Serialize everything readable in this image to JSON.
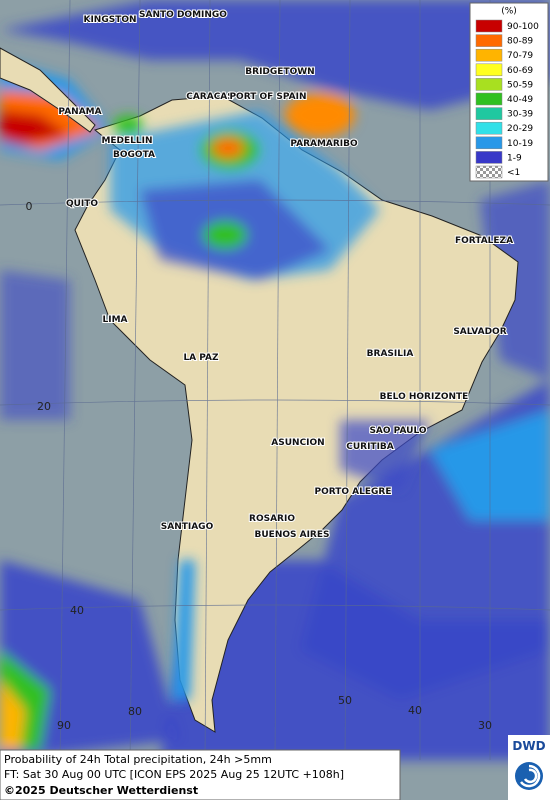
{
  "legend": {
    "title": "(%)",
    "items": [
      {
        "label": "90-100",
        "color": "#c80000"
      },
      {
        "label": "80-89",
        "color": "#ff6a00"
      },
      {
        "label": "70-79",
        "color": "#ffb400"
      },
      {
        "label": "60-69",
        "color": "#ffff20"
      },
      {
        "label": "50-59",
        "color": "#a8e020"
      },
      {
        "label": "40-49",
        "color": "#30c020"
      },
      {
        "label": "30-39",
        "color": "#20c8a0"
      },
      {
        "label": "20-29",
        "color": "#30e0e8"
      },
      {
        "label": "10-19",
        "color": "#2898e8"
      },
      {
        "label": "1-9",
        "color": "#3838c8"
      },
      {
        "label": "<1",
        "color": "#b0b0b0"
      }
    ]
  },
  "cities": [
    "KINGSTON",
    "SANTO DOMINGO",
    "BRIDGETOWN",
    "CARACAS",
    "PORT OF SPAIN",
    "PANAMA",
    "MEDELLIN",
    "BOGOTA",
    "PARAMARIBO",
    "QUITO",
    "FORTALEZA",
    "LIMA",
    "SALVADOR",
    "BRASILIA",
    "LA PAZ",
    "BELO HORIZONTE",
    "SAO PAULO",
    "ASUNCION",
    "CURITIBA",
    "PORTO ALEGRE",
    "ROSARIO",
    "SANTIAGO",
    "BUENOS AIRES"
  ],
  "grid_labels": [
    "0",
    "20",
    "40",
    "90",
    "80",
    "50",
    "40",
    "30"
  ],
  "footer": {
    "line1": "Probability of 24h Total precipitation, 24h >5mm",
    "line2": "FT: Sat 30 Aug 00 UTC [ICON EPS 2025 Aug 25 12UTC +108h]",
    "copyright": "©2025 Deutscher Wetterdienst"
  },
  "logo": "DWD"
}
